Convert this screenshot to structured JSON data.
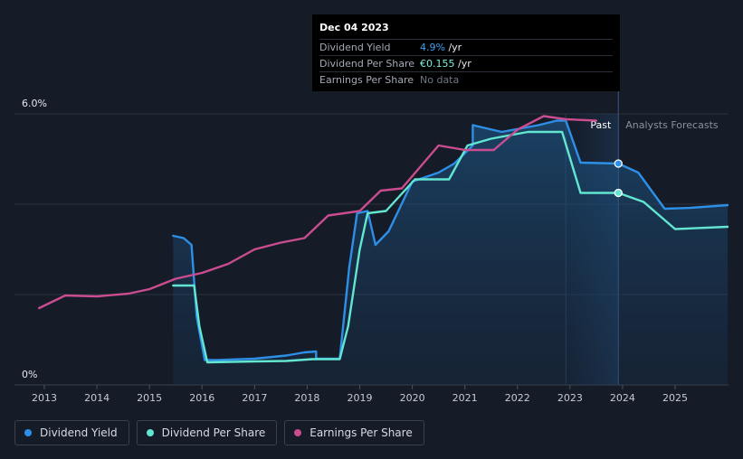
{
  "tooltip": {
    "date": "Dec 04 2023",
    "rows": [
      {
        "label": "Dividend Yield",
        "value": "4.9%",
        "unit": " /yr"
      },
      {
        "label": "Dividend Per Share",
        "value": "€0.155",
        "unit": " /yr"
      },
      {
        "label": "Earnings Per Share",
        "value": "No data",
        "unit": ""
      }
    ]
  },
  "legend": [
    {
      "label": "Dividend Yield",
      "color": "#2e8fe6"
    },
    {
      "label": "Dividend Per Share",
      "color": "#62e6d2"
    },
    {
      "label": "Earnings Per Share",
      "color": "#c94d8f"
    }
  ],
  "chart_data": {
    "type": "line",
    "title": "",
    "ylim": [
      0,
      6
    ],
    "xlim": [
      2012.9,
      2026.0
    ],
    "y_tick_labels": [
      {
        "value": 6,
        "label": "6.0%"
      },
      {
        "value": 0,
        "label": "0%"
      }
    ],
    "x_ticks": [
      "2013",
      "2014",
      "2015",
      "2016",
      "2017",
      "2018",
      "2019",
      "2020",
      "2021",
      "2022",
      "2023",
      "2024",
      "2025"
    ],
    "regions": {
      "past_label": "Past",
      "forecast_label": "Analysts Forecasts",
      "split_x": 2023.92,
      "shade_start_x": 2022.92
    },
    "series": [
      {
        "name": "Dividend Yield",
        "color": "#2e8fe6",
        "fill": true,
        "points": [
          [
            2015.45,
            3.3
          ],
          [
            2015.65,
            3.25
          ],
          [
            2015.8,
            3.1
          ],
          [
            2015.9,
            1.5
          ],
          [
            2016.05,
            0.55
          ],
          [
            2016.3,
            0.55
          ],
          [
            2017,
            0.58
          ],
          [
            2017.6,
            0.65
          ],
          [
            2017.95,
            0.72
          ],
          [
            2018.17,
            0.74
          ],
          [
            2018.17,
            0.58
          ],
          [
            2018.62,
            0.58
          ],
          [
            2018.8,
            2.6
          ],
          [
            2018.95,
            3.8
          ],
          [
            2019.15,
            3.85
          ],
          [
            2019.3,
            3.1
          ],
          [
            2019.55,
            3.4
          ],
          [
            2020.0,
            4.5
          ],
          [
            2020.5,
            4.7
          ],
          [
            2020.8,
            4.9
          ],
          [
            2021.15,
            5.3
          ],
          [
            2021.15,
            5.75
          ],
          [
            2021.7,
            5.6
          ],
          [
            2022.4,
            5.75
          ],
          [
            2022.75,
            5.85
          ],
          [
            2022.92,
            5.85
          ],
          [
            2023.2,
            4.92
          ],
          [
            2023.92,
            4.9
          ],
          [
            2024.3,
            4.7
          ],
          [
            2024.8,
            3.9
          ],
          [
            2025.3,
            3.92
          ],
          [
            2026.0,
            3.98
          ]
        ]
      },
      {
        "name": "Dividend Per Share",
        "color": "#62e6d2",
        "fill": false,
        "points": [
          [
            2015.45,
            2.2
          ],
          [
            2015.85,
            2.2
          ],
          [
            2015.95,
            1.3
          ],
          [
            2016.1,
            0.5
          ],
          [
            2017.0,
            0.52
          ],
          [
            2017.6,
            0.53
          ],
          [
            2018.1,
            0.57
          ],
          [
            2018.62,
            0.57
          ],
          [
            2018.78,
            1.3
          ],
          [
            2019.0,
            3.0
          ],
          [
            2019.15,
            3.8
          ],
          [
            2019.5,
            3.85
          ],
          [
            2020.05,
            4.55
          ],
          [
            2020.7,
            4.55
          ],
          [
            2021.05,
            5.3
          ],
          [
            2021.5,
            5.45
          ],
          [
            2022.2,
            5.6
          ],
          [
            2022.85,
            5.6
          ],
          [
            2023.2,
            4.25
          ],
          [
            2023.92,
            4.25
          ],
          [
            2024.4,
            4.05
          ],
          [
            2025.0,
            3.45
          ],
          [
            2026.0,
            3.5
          ]
        ]
      },
      {
        "name": "Earnings Per Share",
        "color": "#c94d8f",
        "fill": false,
        "points": [
          [
            2012.9,
            1.7
          ],
          [
            2013.4,
            1.98
          ],
          [
            2014.0,
            1.96
          ],
          [
            2014.6,
            2.02
          ],
          [
            2015.0,
            2.12
          ],
          [
            2015.5,
            2.35
          ],
          [
            2016.0,
            2.48
          ],
          [
            2016.5,
            2.68
          ],
          [
            2017.0,
            3.0
          ],
          [
            2017.5,
            3.15
          ],
          [
            2017.95,
            3.25
          ],
          [
            2018.4,
            3.75
          ],
          [
            2019.0,
            3.85
          ],
          [
            2019.4,
            4.3
          ],
          [
            2019.8,
            4.35
          ],
          [
            2020.5,
            5.3
          ],
          [
            2021.0,
            5.2
          ],
          [
            2021.55,
            5.2
          ],
          [
            2022.0,
            5.65
          ],
          [
            2022.5,
            5.95
          ],
          [
            2022.92,
            5.88
          ],
          [
            2023.5,
            5.85
          ]
        ]
      }
    ],
    "markers": [
      {
        "series": "Dividend Yield",
        "x": 2023.92,
        "y": 4.9
      },
      {
        "series": "Dividend Per Share",
        "x": 2023.92,
        "y": 4.25
      }
    ]
  }
}
